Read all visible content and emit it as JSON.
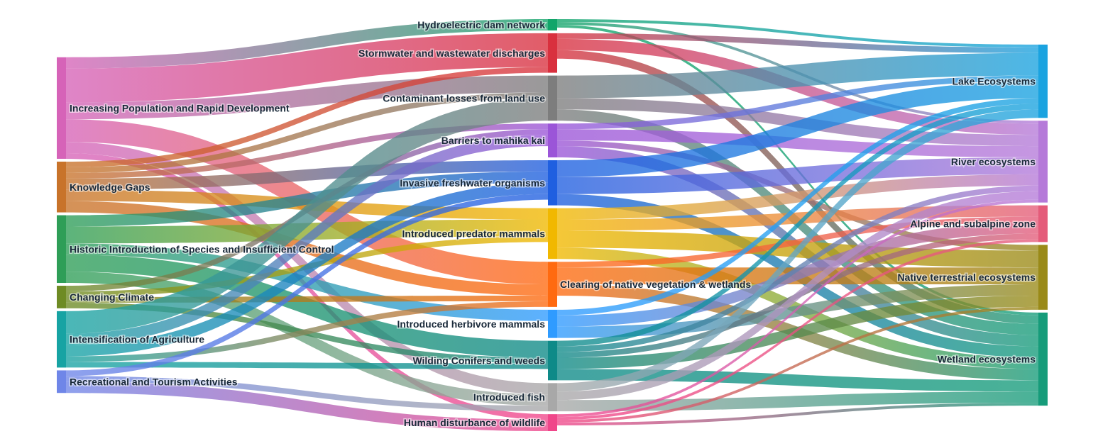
{
  "chart_data": {
    "type": "sankey",
    "nodes": [
      {
        "id": "pop",
        "label": "Increasing Population and Rapid Development",
        "color": "#d663b8"
      },
      {
        "id": "know",
        "label": "Knowledge Gaps",
        "color": "#c8732a"
      },
      {
        "id": "hist",
        "label": "Historic Introduction of Species and Insufficient Control",
        "color": "#2e9e57"
      },
      {
        "id": "clim",
        "label": "Changing Climate",
        "color": "#6e8b24"
      },
      {
        "id": "agri",
        "label": "Intensification of Agriculture",
        "color": "#17a3a3"
      },
      {
        "id": "rec",
        "label": "Recreational and Tourism Activities",
        "color": "#6f86e8"
      },
      {
        "id": "hydro",
        "label": "Hydroelectric dam network",
        "color": "#12a56a"
      },
      {
        "id": "storm",
        "label": "Stormwater and wastewater discharges",
        "color": "#d9303e"
      },
      {
        "id": "cont",
        "label": "Contaminant losses from land use",
        "color": "#7d7d7d"
      },
      {
        "id": "barr",
        "label": "Barriers to mahika kai",
        "color": "#9b55d8"
      },
      {
        "id": "inv",
        "label": "Invasive freshwater organisms",
        "color": "#1f5fe0"
      },
      {
        "id": "pred",
        "label": "Introduced predator mammals",
        "color": "#f1b800"
      },
      {
        "id": "clear",
        "label": "Clearing of native vegetation & wetlands",
        "color": "#ff6a10"
      },
      {
        "id": "herb",
        "label": "Introduced herbivore mammals",
        "color": "#2f9bff"
      },
      {
        "id": "wild",
        "label": "Wilding Conifers and weeds",
        "color": "#0e8a88"
      },
      {
        "id": "fish",
        "label": "Introduced fish",
        "color": "#a8a8a8"
      },
      {
        "id": "hum",
        "label": "Human disturbance of wildlife",
        "color": "#f0468a"
      },
      {
        "id": "lake",
        "label": "Lake Ecosystems",
        "color": "#1aa3e0"
      },
      {
        "id": "river",
        "label": "River ecosystems",
        "color": "#b57ad9"
      },
      {
        "id": "alp",
        "label": "Alpine and subalpine zone",
        "color": "#e45c7a"
      },
      {
        "id": "nat",
        "label": "Native terrestrial ecosystems",
        "color": "#9a8a18"
      },
      {
        "id": "wet",
        "label": "Wetland ecosystems",
        "color": "#169c7a"
      }
    ],
    "links": [
      [
        "pop",
        "hydro",
        2
      ],
      [
        "pop",
        "storm",
        6
      ],
      [
        "pop",
        "cont",
        3
      ],
      [
        "pop",
        "clear",
        4
      ],
      [
        "pop",
        "hum",
        1
      ],
      [
        "pop",
        "fish",
        2
      ],
      [
        "know",
        "storm",
        1
      ],
      [
        "know",
        "cont",
        1
      ],
      [
        "know",
        "barr",
        1
      ],
      [
        "know",
        "inv",
        2
      ],
      [
        "know",
        "pred",
        2
      ],
      [
        "know",
        "clear",
        2
      ],
      [
        "hist",
        "inv",
        2
      ],
      [
        "hist",
        "pred",
        3
      ],
      [
        "hist",
        "herb",
        2
      ],
      [
        "hist",
        "wild",
        3
      ],
      [
        "hist",
        "fish",
        2
      ],
      [
        "clim",
        "pred",
        1
      ],
      [
        "clim",
        "clear",
        1
      ],
      [
        "clim",
        "wild",
        1
      ],
      [
        "clim",
        "barr",
        1
      ],
      [
        "agri",
        "cont",
        4
      ],
      [
        "agri",
        "barr",
        2
      ],
      [
        "agri",
        "inv",
        2
      ],
      [
        "agri",
        "clear",
        1
      ],
      [
        "agri",
        "wild",
        1
      ],
      [
        "rec",
        "inv",
        1
      ],
      [
        "rec",
        "fish",
        1
      ],
      [
        "rec",
        "hum",
        2
      ],
      [
        "hydro",
        "lake",
        0.5
      ],
      [
        "hydro",
        "river",
        0.5
      ],
      [
        "hydro",
        "wet",
        0.5
      ],
      [
        "storm",
        "lake",
        1
      ],
      [
        "storm",
        "river",
        2
      ],
      [
        "storm",
        "wet",
        1.5
      ],
      [
        "cont",
        "lake",
        4
      ],
      [
        "cont",
        "river",
        2
      ],
      [
        "cont",
        "wet",
        2
      ],
      [
        "barr",
        "lake",
        1
      ],
      [
        "barr",
        "river",
        2
      ],
      [
        "barr",
        "nat",
        1
      ],
      [
        "barr",
        "wet",
        2
      ],
      [
        "inv",
        "lake",
        3
      ],
      [
        "inv",
        "river",
        3
      ],
      [
        "inv",
        "wet",
        2
      ],
      [
        "pred",
        "river",
        2
      ],
      [
        "pred",
        "alp",
        2
      ],
      [
        "pred",
        "nat",
        3
      ],
      [
        "pred",
        "wet",
        2
      ],
      [
        "clear",
        "alp",
        1
      ],
      [
        "clear",
        "nat",
        3
      ],
      [
        "clear",
        "wet",
        2
      ],
      [
        "herb",
        "lake",
        1
      ],
      [
        "herb",
        "alp",
        2
      ],
      [
        "herb",
        "nat",
        2
      ],
      [
        "wild",
        "lake",
        1
      ],
      [
        "wild",
        "river",
        1
      ],
      [
        "wild",
        "alp",
        1
      ],
      [
        "wild",
        "nat",
        2
      ],
      [
        "wild",
        "wet",
        2
      ],
      [
        "fish",
        "lake",
        1.5
      ],
      [
        "fish",
        "river",
        1.5
      ],
      [
        "fish",
        "wet",
        2
      ],
      [
        "hum",
        "river",
        0.5
      ],
      [
        "hum",
        "alp",
        0.5
      ],
      [
        "hum",
        "nat",
        0.5
      ],
      [
        "hum",
        "wet",
        0.5
      ]
    ]
  }
}
